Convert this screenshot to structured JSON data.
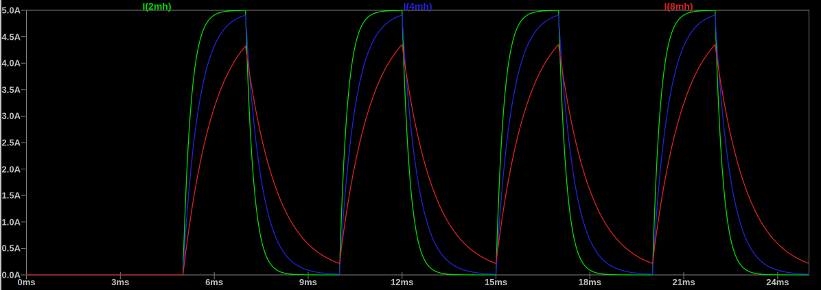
{
  "window": {
    "background": "#000000",
    "left_edge_color": "#c8c8c8"
  },
  "plot": {
    "border_color": "#828282",
    "tick_color": "#828282",
    "label_color": "#c0c0c0"
  },
  "chart_data": {
    "type": "line",
    "title": "",
    "xlabel": "",
    "ylabel": "",
    "x_unit": "ms",
    "y_unit": "A",
    "x_range": [
      0,
      25
    ],
    "y_range": [
      0,
      5
    ],
    "grid": false,
    "legend_position": "top-centered-per-trace",
    "x_ticks": [
      {
        "t": 0,
        "label": "0ms"
      },
      {
        "t": 3,
        "label": "3ms"
      },
      {
        "t": 6,
        "label": "6ms"
      },
      {
        "t": 9,
        "label": "9ms"
      },
      {
        "t": 12,
        "label": "12ms"
      },
      {
        "t": 15,
        "label": "15ms"
      },
      {
        "t": 18,
        "label": "18ms"
      },
      {
        "t": 21,
        "label": "21ms"
      },
      {
        "t": 24,
        "label": "24ms"
      }
    ],
    "y_ticks": [
      {
        "v": 5.0,
        "label": "5.0A"
      },
      {
        "v": 4.5,
        "label": "4.5A"
      },
      {
        "v": 4.0,
        "label": "4.0A"
      },
      {
        "v": 3.5,
        "label": "3.5A"
      },
      {
        "v": 3.0,
        "label": "3.0A"
      },
      {
        "v": 2.5,
        "label": "2.5A"
      },
      {
        "v": 2.0,
        "label": "2.0A"
      },
      {
        "v": 1.5,
        "label": "1.5A"
      },
      {
        "v": 1.0,
        "label": "1.0A"
      },
      {
        "v": 0.5,
        "label": "0.5A"
      },
      {
        "v": 0.0,
        "label": "0.0A"
      }
    ],
    "excitation": {
      "type": "pulse-train",
      "amplitude_A": 5,
      "t_first_rise_ms": 5,
      "on_time_ms": 2,
      "period_ms": 5,
      "baseline_A": 0
    },
    "sample_step_ms": 0.02,
    "series": [
      {
        "name": "I(2mh)",
        "color": "#00dd00",
        "tau_ms": 0.25,
        "peak_A": 5.0,
        "residual_A_at_cycle_end": 0.0
      },
      {
        "name": "I(4mh)",
        "color": "#2222e0",
        "tau_ms": 0.5,
        "peak_A": 4.9,
        "residual_A_at_cycle_end": 0.01
      },
      {
        "name": "I(8mh)",
        "color": "#dd2222",
        "tau_ms": 1.0,
        "peak_A": 4.33,
        "residual_A_at_cycle_end": 0.25
      }
    ]
  }
}
